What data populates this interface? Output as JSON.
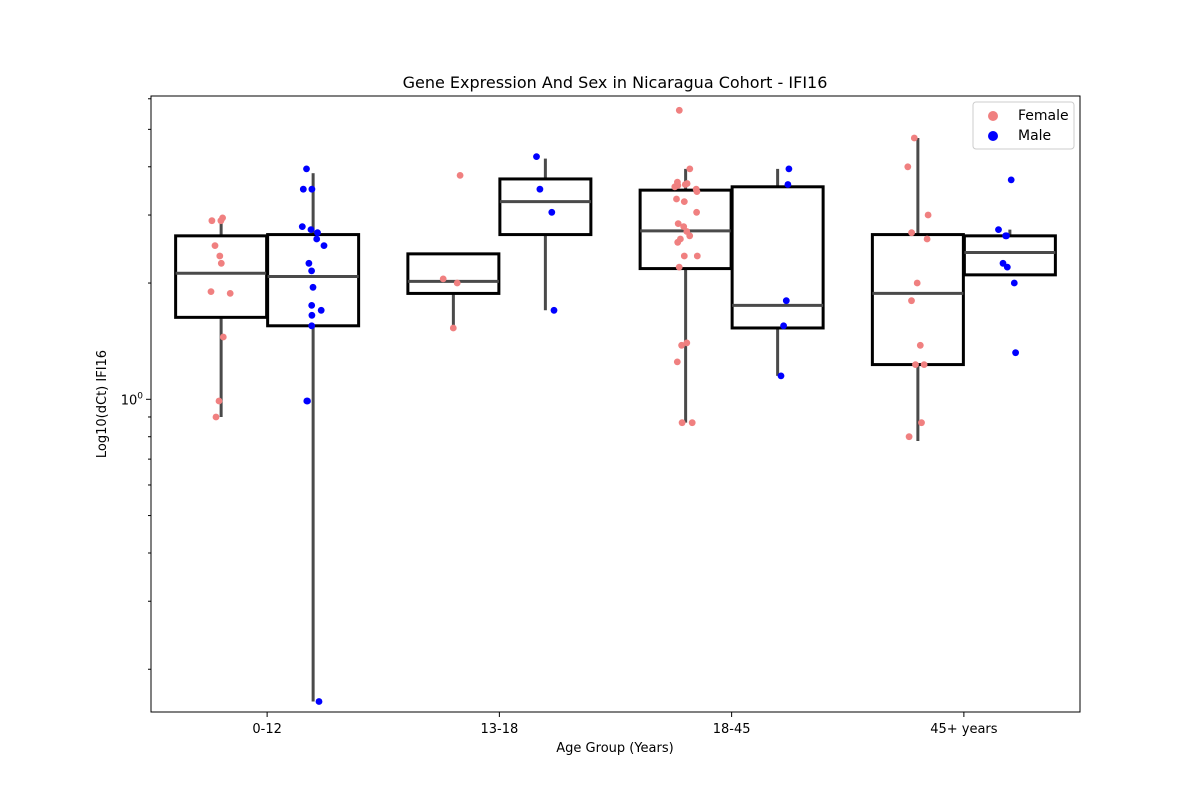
{
  "chart_data": {
    "type": "box",
    "title": "Gene Expression And Sex in Nicaragua Cohort - IFI16",
    "xlabel": "Age Group (Years)",
    "ylabel": "Log10(dCt) IFI16",
    "yscale": "log",
    "ylim": [
      0.155,
      6.1
    ],
    "y_tick_labels": [
      {
        "value": 1,
        "base": "10",
        "exp": "0"
      }
    ],
    "categories": [
      "0-12",
      "13-18",
      "18-45",
      "45+ years"
    ],
    "legend": {
      "position": "top-right",
      "entries": [
        "Female",
        "Male"
      ]
    },
    "colors": {
      "Female": "#f08080",
      "Male": "#0000ff",
      "box_edge": "#000000",
      "median": "#4a4a4a",
      "whisker": "#4a4a4a"
    },
    "series": [
      {
        "name": "Female",
        "boxes": [
          {
            "whislo": 0.9,
            "q1": 1.63,
            "med": 2.12,
            "q3": 2.65,
            "whishi": 2.95
          },
          {
            "whislo": 1.55,
            "q1": 1.88,
            "med": 2.02,
            "q3": 2.38,
            "whishi": 2.38
          },
          {
            "whislo": 0.87,
            "q1": 2.18,
            "med": 2.73,
            "q3": 3.48,
            "whishi": 3.95
          },
          {
            "whislo": 0.78,
            "q1": 1.23,
            "med": 1.88,
            "q3": 2.67,
            "whishi": 4.75
          }
        ],
        "points": [
          [
            2.9,
            2.95,
            2.9,
            2.5,
            2.35,
            2.25,
            1.9,
            1.88,
            1.45,
            0.99,
            0.9
          ],
          [
            3.8,
            2.0,
            2.05,
            1.53
          ],
          [
            5.6,
            3.95,
            3.65,
            3.62,
            3.6,
            3.58,
            3.55,
            3.5,
            3.45,
            3.3,
            3.25,
            3.05,
            2.85,
            2.8,
            2.72,
            2.65,
            2.6,
            2.55,
            2.35,
            2.35,
            2.2,
            1.4,
            1.38,
            1.25,
            0.87,
            0.87
          ],
          [
            4.75,
            4.0,
            3.0,
            2.7,
            2.6,
            2.0,
            1.8,
            1.38,
            1.23,
            1.23,
            0.87,
            0.8
          ]
        ]
      },
      {
        "name": "Male",
        "boxes": [
          {
            "whislo": 0.165,
            "q1": 1.55,
            "med": 2.08,
            "q3": 2.67,
            "whishi": 3.85
          },
          {
            "whislo": 1.7,
            "q1": 2.67,
            "med": 3.25,
            "q3": 3.72,
            "whishi": 4.2
          },
          {
            "whislo": 1.15,
            "q1": 1.53,
            "med": 1.75,
            "q3": 3.55,
            "whishi": 3.95
          },
          {
            "whislo": 2.1,
            "q1": 2.1,
            "med": 2.4,
            "q3": 2.65,
            "whishi": 2.75
          }
        ],
        "points": [
          [
            3.95,
            3.5,
            3.5,
            2.8,
            2.75,
            2.7,
            2.6,
            2.5,
            2.25,
            2.15,
            1.95,
            1.75,
            1.7,
            1.65,
            1.55,
            0.99,
            0.99,
            0.165
          ],
          [
            4.25,
            3.5,
            3.05,
            1.7
          ],
          [
            3.95,
            3.6,
            1.8,
            1.55,
            1.15
          ],
          [
            3.7,
            2.75,
            2.65,
            2.65,
            2.25,
            2.2,
            2.0,
            1.32
          ]
        ]
      }
    ]
  }
}
